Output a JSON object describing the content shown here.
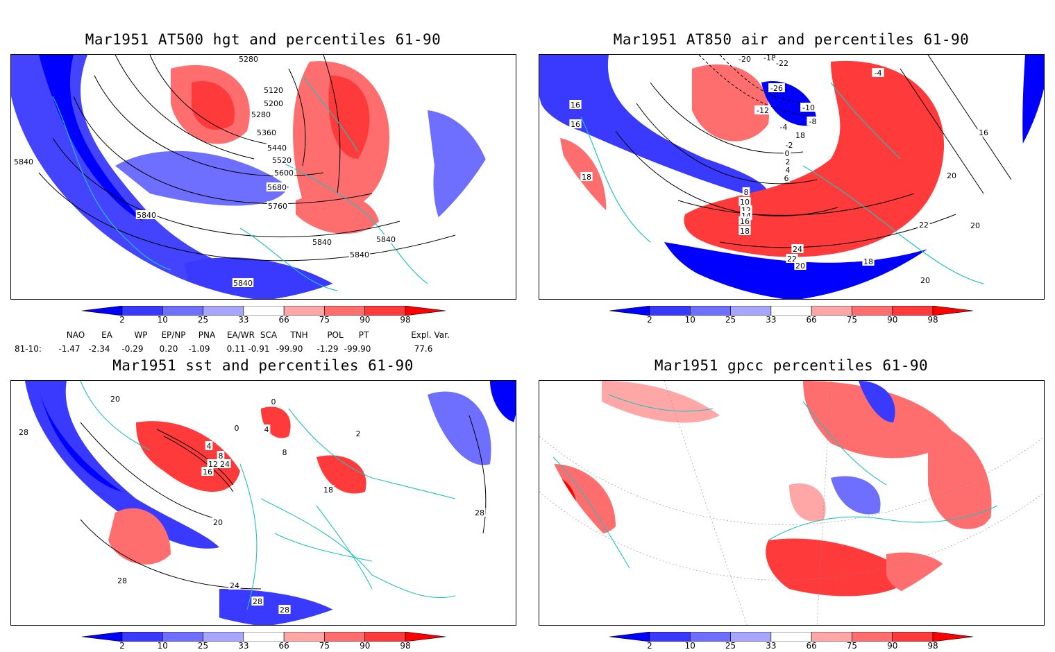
{
  "panels": [
    {
      "title": "Mar1951 AT500 hgt and percentiles 61-90",
      "contour_labels": [
        "5280",
        "5120",
        "5200",
        "5280",
        "5360",
        "5440",
        "5520",
        "5600",
        "5680",
        "5760",
        "5840",
        "5840",
        "5840",
        "5840",
        "5840",
        "5840"
      ]
    },
    {
      "title": "Mar1951 AT850 air and percentiles 61-90",
      "contour_labels": [
        "-20",
        "-18",
        "-22",
        "-26",
        "-12",
        "-10",
        "-8",
        "-4",
        "-2",
        "0",
        "2",
        "4",
        "6",
        "8",
        "10",
        "12",
        "14",
        "16",
        "18",
        "18",
        "16",
        "16",
        "18",
        "20",
        "20",
        "22",
        "24",
        "22",
        "20",
        "18",
        "20",
        "-4",
        "16"
      ]
    },
    {
      "title": "Mar1951 sst and percentiles 61-90",
      "contour_labels": [
        "20",
        "28",
        "0",
        "0",
        "4",
        "8",
        "12",
        "16",
        "24",
        "4",
        "8",
        "18",
        "28",
        "20",
        "24",
        "28",
        "28",
        "28",
        "2"
      ]
    },
    {
      "title": "Mar1951 gpcc percentiles 61-90",
      "contour_labels": []
    }
  ],
  "colorbar": {
    "ticks": [
      "2",
      "10",
      "25",
      "33",
      "66",
      "75",
      "90",
      "98"
    ],
    "colors": [
      "#0000ff",
      "#3a3aff",
      "#6e6eff",
      "#a6a6ff",
      "#ffffff",
      "#ffa6a6",
      "#ff6e6e",
      "#ff3a3a",
      "#ff0000"
    ]
  },
  "stats": {
    "headers": [
      "NAO",
      "EA",
      "WP",
      "EP/NP",
      "PNA",
      "EA/WR",
      "SCA",
      "TNH",
      "POL",
      "PT",
      "Expl. Var."
    ],
    "row_label": "81-10:",
    "values": [
      "-1.47",
      "-2.34",
      "-0.29",
      "0.20",
      "-1.09",
      "0.11",
      "-0.91",
      "-99.90",
      "-1.29",
      "-99.90",
      "77.6"
    ]
  },
  "colors": {
    "coast": "#20c0c0",
    "contour": "#000000",
    "frame": "#000000"
  }
}
